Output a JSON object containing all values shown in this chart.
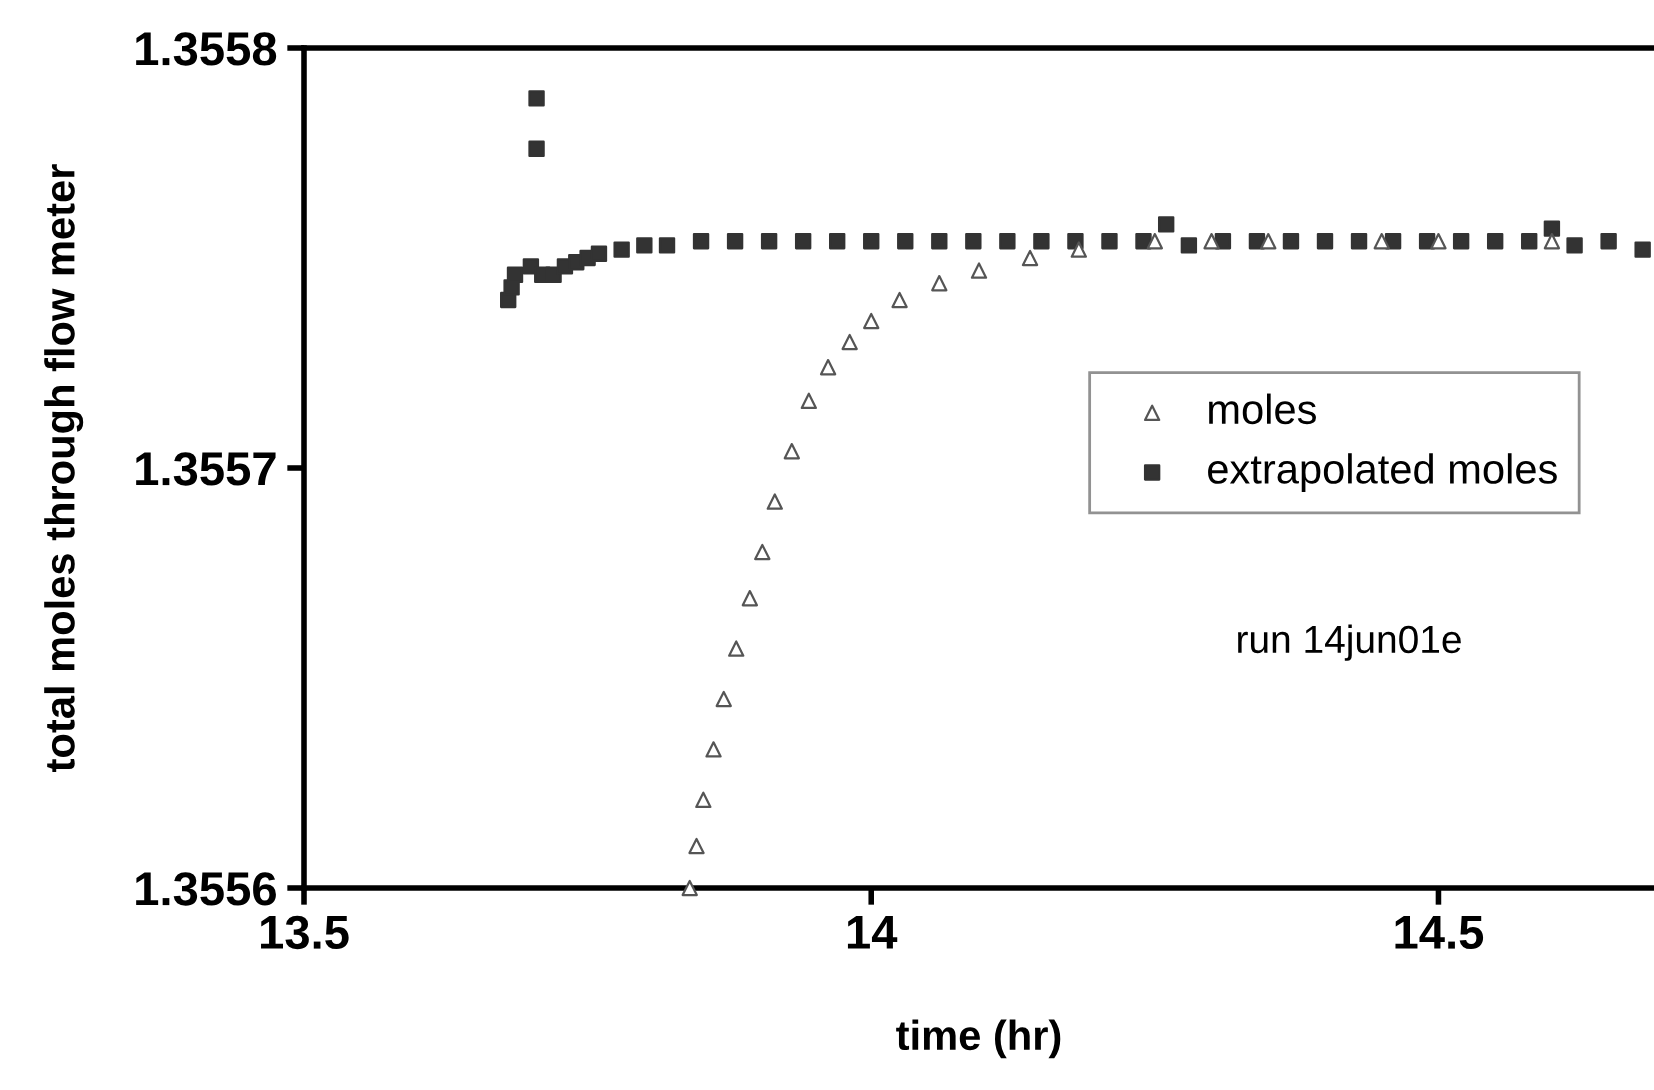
{
  "chart_data": {
    "type": "scatter",
    "xlabel": "time (hr)",
    "ylabel": "total moles through flow meter",
    "xlim": [
      13.5,
      14.69
    ],
    "ylim": [
      1.3556,
      1.3558
    ],
    "xticks": [
      13.5,
      14,
      14.5
    ],
    "yticks": [
      1.3556,
      1.3557,
      1.3558
    ],
    "grid": false,
    "legend": "center right",
    "annotations": [
      "run 14jun01e"
    ],
    "series": [
      {
        "name": "moles",
        "marker": "triangle",
        "color": "#555555",
        "x": [
          13.84,
          13.846,
          13.852,
          13.861,
          13.87,
          13.881,
          13.893,
          13.904,
          13.915,
          13.93,
          13.945,
          13.962,
          13.981,
          14.0,
          14.025,
          14.06,
          14.095,
          14.14,
          14.183,
          14.25,
          14.3,
          14.35,
          14.45,
          14.5,
          14.6
        ],
        "values": [
          1.3556,
          1.35561,
          1.355621,
          1.355633,
          1.355645,
          1.355657,
          1.355669,
          1.35568,
          1.355692,
          1.355704,
          1.355716,
          1.355724,
          1.35573,
          1.355735,
          1.35574,
          1.355744,
          1.355747,
          1.35575,
          1.355752,
          1.355754,
          1.355754,
          1.355754,
          1.355754,
          1.355754,
          1.355754
        ]
      },
      {
        "name": "extrapolated moles",
        "marker": "square",
        "color": "#333333",
        "x": [
          13.68,
          13.683,
          13.686,
          13.7,
          13.705,
          13.705,
          13.71,
          13.72,
          13.73,
          13.74,
          13.75,
          13.76,
          13.78,
          13.8,
          13.82,
          13.85,
          13.88,
          13.91,
          13.94,
          13.97,
          14.0,
          14.03,
          14.06,
          14.09,
          14.12,
          14.15,
          14.18,
          14.21,
          14.24,
          14.26,
          14.28,
          14.31,
          14.34,
          14.37,
          14.4,
          14.43,
          14.46,
          14.49,
          14.52,
          14.55,
          14.58,
          14.6,
          14.62,
          14.65,
          14.68
        ],
        "values": [
          1.35574,
          1.355743,
          1.355746,
          1.355748,
          1.355788,
          1.355776,
          1.355746,
          1.355746,
          1.355748,
          1.355749,
          1.35575,
          1.355751,
          1.355752,
          1.355753,
          1.355753,
          1.355754,
          1.355754,
          1.355754,
          1.355754,
          1.355754,
          1.355754,
          1.355754,
          1.355754,
          1.355754,
          1.355754,
          1.355754,
          1.355754,
          1.355754,
          1.355754,
          1.355758,
          1.355753,
          1.355754,
          1.355754,
          1.355754,
          1.355754,
          1.355754,
          1.355754,
          1.355754,
          1.355754,
          1.355754,
          1.355754,
          1.355757,
          1.355753,
          1.355754,
          1.355752
        ]
      }
    ]
  }
}
